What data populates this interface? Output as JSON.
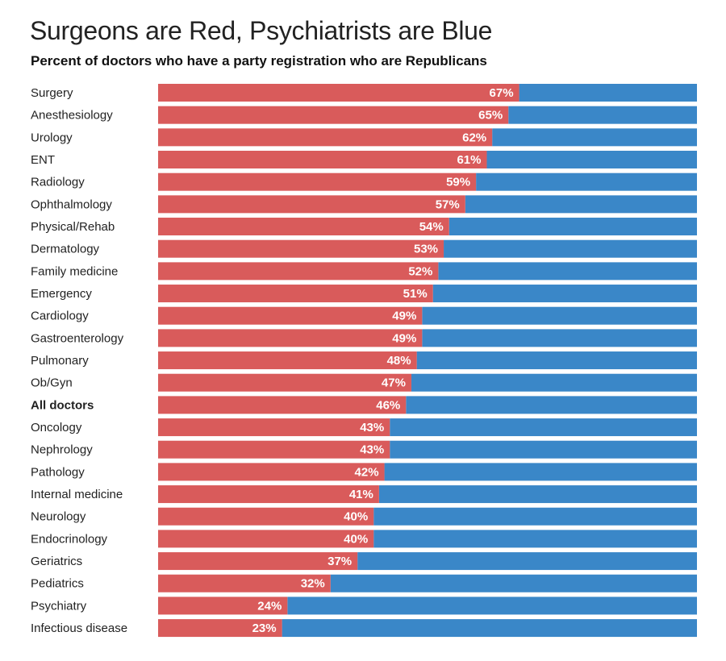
{
  "chart_data": {
    "type": "bar",
    "orientation": "horizontal",
    "stacked": true,
    "title": "Surgeons are Red, Psychiatrists are Blue",
    "subtitle": "Percent of doctors who have a party registration who are Republicans",
    "categories": [
      "Surgery",
      "Anesthesiology",
      "Urology",
      "ENT",
      "Radiology",
      "Ophthalmology",
      "Physical/Rehab",
      "Dermatology",
      "Family medicine",
      "Emergency",
      "Cardiology",
      "Gastroenterology",
      "Pulmonary",
      "Ob/Gyn",
      "All doctors",
      "Oncology",
      "Nephrology",
      "Pathology",
      "Internal medicine",
      "Neurology",
      "Endocrinology",
      "Geriatrics",
      "Pediatrics",
      "Psychiatry",
      "Infectious disease"
    ],
    "values": [
      67,
      65,
      62,
      61,
      59,
      57,
      54,
      53,
      52,
      51,
      49,
      49,
      48,
      47,
      46,
      43,
      43,
      42,
      41,
      40,
      40,
      37,
      32,
      24,
      23
    ],
    "value_labels": [
      "67%",
      "65%",
      "62%",
      "61%",
      "59%",
      "57%",
      "54%",
      "53%",
      "52%",
      "51%",
      "49%",
      "49%",
      "48%",
      "47%",
      "46%",
      "43%",
      "43%",
      "42%",
      "41%",
      "40%",
      "40%",
      "37%",
      "32%",
      "24%",
      "23%"
    ],
    "highlighted_category": "All doctors",
    "xlim": [
      0,
      100
    ],
    "grid": false,
    "colors": {
      "republican": "#d95b5b",
      "remainder": "#3a87c8"
    }
  }
}
